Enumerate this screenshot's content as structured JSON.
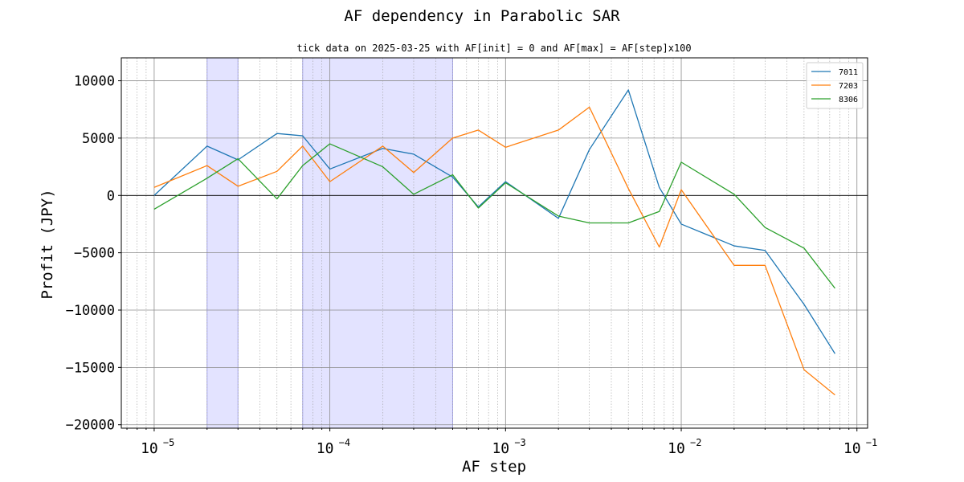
{
  "chart_data": {
    "type": "line",
    "title": "AF dependency in Parabolic SAR",
    "subtitle": "tick data on 2025-03-25 with AF[init] = 0 and AF[max] = AF[step]x100",
    "xlabel": "AF step",
    "ylabel": "Profit (JPY)",
    "xscale": "log",
    "xlim": [
      6.5e-06,
      0.115
    ],
    "ylim": [
      -20300,
      12000
    ],
    "x_ticks": [
      {
        "value": 1e-05,
        "base": "10",
        "exp": "−5"
      },
      {
        "value": 0.0001,
        "base": "10",
        "exp": "−4"
      },
      {
        "value": 0.001,
        "base": "10",
        "exp": "−3"
      },
      {
        "value": 0.01,
        "base": "10",
        "exp": "−2"
      },
      {
        "value": 0.1,
        "base": "10",
        "exp": "−1"
      }
    ],
    "y_ticks": [
      10000,
      5000,
      0,
      -5000,
      -10000,
      -15000,
      -20000
    ],
    "y_tick_labels": [
      "10000",
      "5000",
      "0",
      "−5000",
      "−10000",
      "−15000",
      "−20000"
    ],
    "grid": true,
    "legend_position": "top-right",
    "shaded_ranges": [
      [
        2e-05,
        3e-05
      ],
      [
        7e-05,
        0.0005
      ]
    ],
    "x": [
      1e-05,
      2e-05,
      3e-05,
      5e-05,
      7e-05,
      0.0001,
      0.0002,
      0.0003,
      0.0005,
      0.0007,
      0.001,
      0.002,
      0.003,
      0.005,
      0.0075,
      0.01,
      0.02,
      0.03,
      0.05,
      0.075
    ],
    "series": [
      {
        "name": "7011",
        "color": "#1f77b4",
        "values": [
          0,
          4300,
          3100,
          5400,
          5200,
          2300,
          4100,
          3600,
          1600,
          -1000,
          1200,
          -2000,
          4000,
          9200,
          700,
          -2500,
          -4400,
          -4800,
          -9500,
          -13800
        ]
      },
      {
        "name": "7203",
        "color": "#ff7f0e",
        "values": [
          700,
          2600,
          800,
          2100,
          4300,
          1200,
          4300,
          2000,
          5000,
          5700,
          4200,
          5700,
          7700,
          600,
          -4500,
          500,
          -6100,
          -6100,
          -15200,
          -17400
        ]
      },
      {
        "name": "8306",
        "color": "#2ca02c",
        "values": [
          -1200,
          1500,
          3200,
          -300,
          2600,
          4500,
          2500,
          100,
          1800,
          -1100,
          1100,
          -1800,
          -2400,
          -2400,
          -1400,
          2900,
          100,
          -2800,
          -4600,
          -8100
        ]
      }
    ]
  }
}
